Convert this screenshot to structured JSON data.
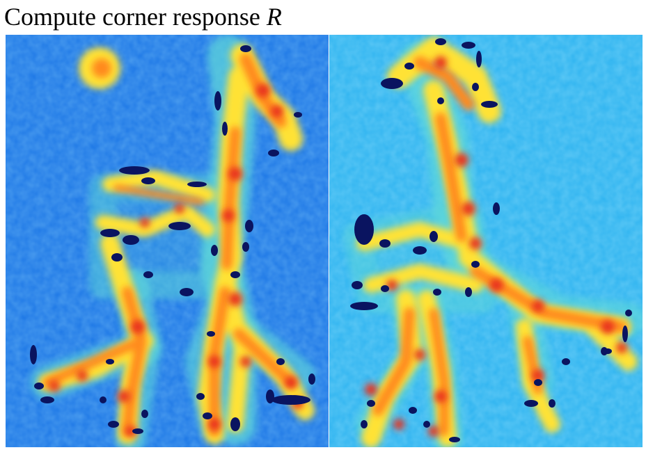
{
  "slide": {
    "title_text": "Compute corner response ",
    "title_var": "R"
  },
  "colormap": {
    "background_left": "#1e78e6",
    "background_right": "#2fb4f0",
    "cyan": "#5fd8d8",
    "yellow": "#ffe234",
    "orange": "#ff8a1e",
    "red": "#e8321e",
    "dark_red": "#b4140f",
    "navy": "#0a1460"
  },
  "panels": [
    {
      "name": "left-panel",
      "icon": "corner-response-heatmap-left"
    },
    {
      "name": "right-panel",
      "icon": "corner-response-heatmap-right"
    }
  ]
}
